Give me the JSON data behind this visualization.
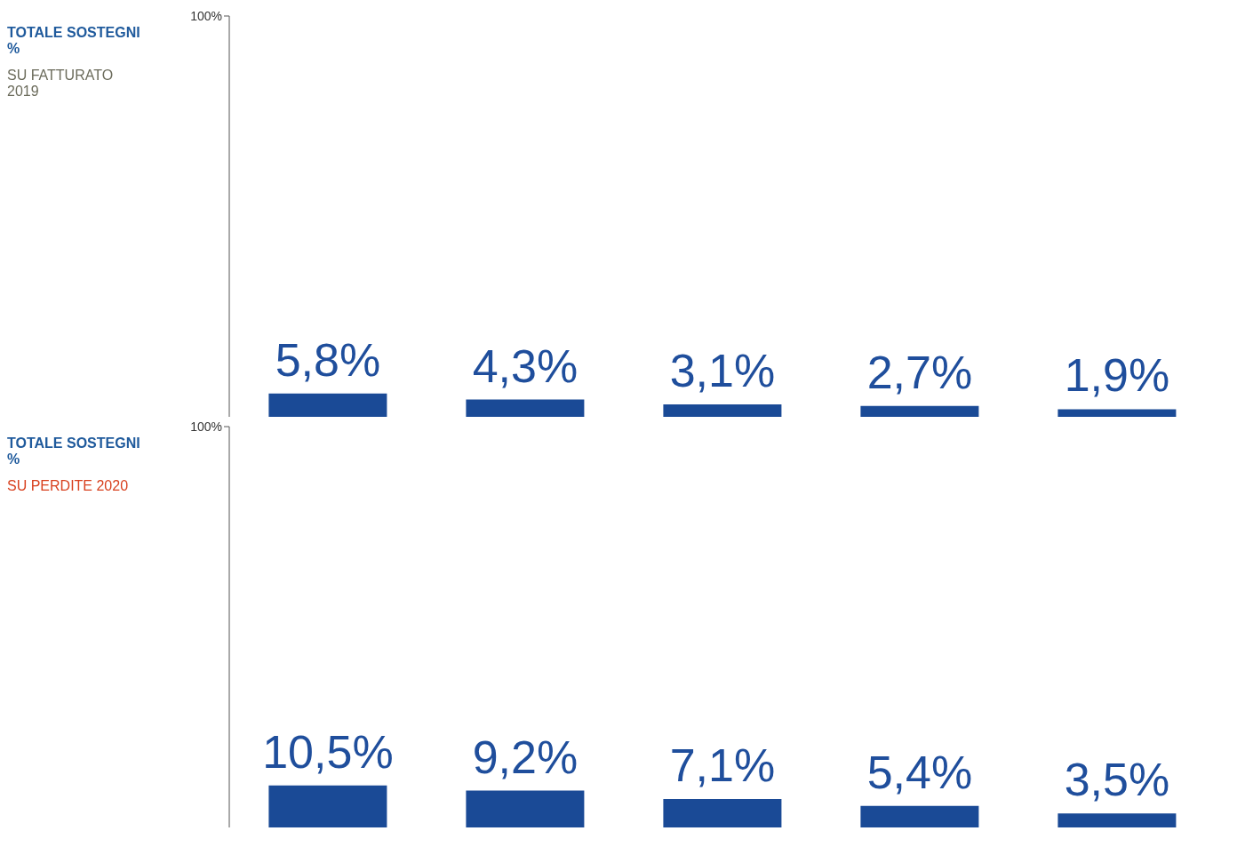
{
  "chart_data": [
    {
      "type": "bar",
      "title": "TOTALE SOSTEGNI\n%",
      "ylabel": "SU FATTURATO 2019",
      "categories": [
        null,
        null,
        null,
        null,
        null
      ],
      "values": [
        5.8,
        4.3,
        3.1,
        2.7,
        1.9
      ],
      "value_labels": [
        "5,8%",
        "4,3%",
        "3,1%",
        "2,7%",
        "1,9%"
      ],
      "color": "#1a4a96",
      "ylim": [
        0,
        100
      ],
      "yticks": [
        {
          "value": 100,
          "label": "100%"
        }
      ],
      "tick_labels": "y"
    },
    {
      "type": "bar",
      "title": "TOTALE SOSTEGNI\n%",
      "ylabel": "SU PERDITE 2020",
      "categories": [
        null,
        null,
        null,
        null,
        null
      ],
      "values": [
        10.5,
        9.2,
        7.1,
        5.4,
        3.5
      ],
      "value_labels": [
        "10,5%",
        "9,2%",
        "7,1%",
        "5,4%",
        "3,5%"
      ],
      "color": "#1a4a96",
      "ylim": [
        0,
        100
      ],
      "yticks": [
        {
          "value": 100,
          "label": "100%"
        }
      ],
      "tick_labels": "y"
    }
  ]
}
